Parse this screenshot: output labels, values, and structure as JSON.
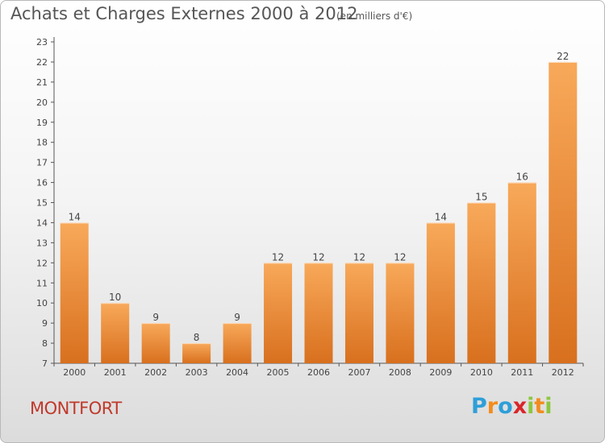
{
  "title": "Achats et Charges Externes 2000 à 2012",
  "subtitle": "(en milliers d'€)",
  "commune": "MONTFORT",
  "logo": {
    "letters": [
      "P",
      "r",
      "o",
      "x",
      "i",
      "t",
      "i"
    ],
    "colors": [
      "#2e9fd8",
      "#f28c1c",
      "#2e9fd8",
      "#d9262b",
      "#8cc63f",
      "#f28c1c",
      "#8cc63f"
    ]
  },
  "colors": {
    "bar_light": "#f8a95a",
    "bar_dark": "#d8701e",
    "commune_text": "#c0392b"
  },
  "chart_data": {
    "type": "bar",
    "categories": [
      "2000",
      "2001",
      "2002",
      "2003",
      "2004",
      "2005",
      "2006",
      "2007",
      "2008",
      "2009",
      "2010",
      "2011",
      "2012"
    ],
    "values": [
      14,
      10,
      9,
      8,
      9,
      12,
      12,
      12,
      12,
      14,
      15,
      16,
      22
    ],
    "title": "Achats et Charges Externes 2000 à 2012",
    "subtitle": "(en milliers d'€)",
    "xlabel": "",
    "ylabel": "",
    "ylim": [
      7,
      23
    ],
    "yticks": [
      7,
      8,
      9,
      10,
      11,
      12,
      13,
      14,
      15,
      16,
      17,
      18,
      19,
      20,
      21,
      22,
      23
    ],
    "grid": false,
    "data_labels": true
  }
}
